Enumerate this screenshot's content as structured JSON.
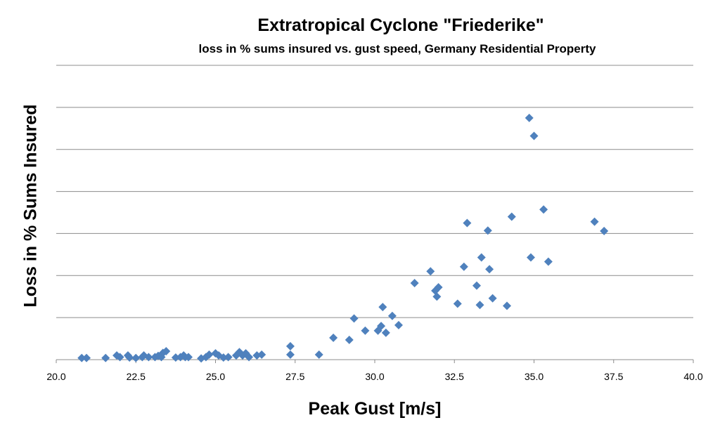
{
  "chart_data": {
    "type": "scatter",
    "title": "Extratropical Cyclone \"Friederike\"",
    "subtitle": "loss in % sums insured vs. gust speed, Germany Residential Property",
    "xlabel": "Peak Gust [m/s]",
    "ylabel": "Loss in % Sums Insured",
    "xlim": [
      20,
      40
    ],
    "ylim": [
      0,
      7
    ],
    "x_ticks": [
      "20.0",
      "22.5",
      "25.0",
      "27.5",
      "30.0",
      "32.5",
      "35.0",
      "37.5",
      "40.0"
    ],
    "grid": true,
    "y_tick_labels_shown": false,
    "marker_color": "#4F81BD",
    "series": [
      {
        "points": [
          [
            20.8,
            0.04
          ],
          [
            20.95,
            0.04
          ],
          [
            21.55,
            0.04
          ],
          [
            21.9,
            0.1
          ],
          [
            22.0,
            0.06
          ],
          [
            22.25,
            0.1
          ],
          [
            22.3,
            0.05
          ],
          [
            22.5,
            0.04
          ],
          [
            22.7,
            0.06
          ],
          [
            22.75,
            0.1
          ],
          [
            22.9,
            0.06
          ],
          [
            23.1,
            0.06
          ],
          [
            23.2,
            0.09
          ],
          [
            23.3,
            0.06
          ],
          [
            23.35,
            0.16
          ],
          [
            23.45,
            0.2
          ],
          [
            23.75,
            0.05
          ],
          [
            23.9,
            0.06
          ],
          [
            24.0,
            0.1
          ],
          [
            24.05,
            0.06
          ],
          [
            24.15,
            0.06
          ],
          [
            24.55,
            0.03
          ],
          [
            24.7,
            0.06
          ],
          [
            24.8,
            0.12
          ],
          [
            25.0,
            0.15
          ],
          [
            25.1,
            0.1
          ],
          [
            25.25,
            0.05
          ],
          [
            25.4,
            0.06
          ],
          [
            25.65,
            0.1
          ],
          [
            25.75,
            0.18
          ],
          [
            25.85,
            0.1
          ],
          [
            25.95,
            0.15
          ],
          [
            26.05,
            0.06
          ],
          [
            26.3,
            0.1
          ],
          [
            26.45,
            0.12
          ],
          [
            27.35,
            0.32
          ],
          [
            27.35,
            0.12
          ],
          [
            28.25,
            0.12
          ],
          [
            28.7,
            0.52
          ],
          [
            29.2,
            0.47
          ],
          [
            29.35,
            0.98
          ],
          [
            29.7,
            0.69
          ],
          [
            30.1,
            0.69
          ],
          [
            30.2,
            0.8
          ],
          [
            30.25,
            1.25
          ],
          [
            30.35,
            0.64
          ],
          [
            30.55,
            1.04
          ],
          [
            30.75,
            0.82
          ],
          [
            31.25,
            1.82
          ],
          [
            31.75,
            2.1
          ],
          [
            31.9,
            1.64
          ],
          [
            31.95,
            1.5
          ],
          [
            32.0,
            1.72
          ],
          [
            32.6,
            1.33
          ],
          [
            32.8,
            2.21
          ],
          [
            32.9,
            3.25
          ],
          [
            33.2,
            1.76
          ],
          [
            33.3,
            1.3
          ],
          [
            33.35,
            2.43
          ],
          [
            33.55,
            3.07
          ],
          [
            33.6,
            2.15
          ],
          [
            33.7,
            1.46
          ],
          [
            34.15,
            1.28
          ],
          [
            34.3,
            3.4
          ],
          [
            34.85,
            5.75
          ],
          [
            34.9,
            2.43
          ],
          [
            35.0,
            5.32
          ],
          [
            35.3,
            3.57
          ],
          [
            35.45,
            2.33
          ],
          [
            36.9,
            3.28
          ],
          [
            37.2,
            3.06
          ]
        ]
      }
    ]
  }
}
